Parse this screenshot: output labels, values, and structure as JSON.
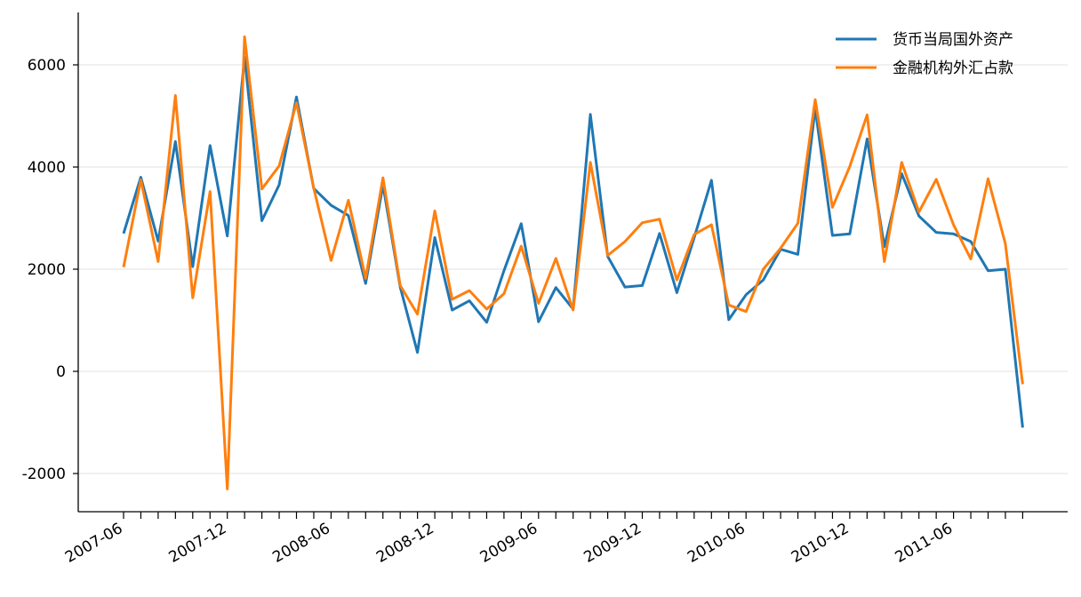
{
  "chart_data": {
    "type": "line",
    "title": "",
    "xlabel": "",
    "ylabel": "",
    "x": [
      "2007-06",
      "2007-07",
      "2007-08",
      "2007-09",
      "2007-10",
      "2007-11",
      "2007-12",
      "2008-01",
      "2008-02",
      "2008-03",
      "2008-04",
      "2008-05",
      "2008-06",
      "2008-07",
      "2008-08",
      "2008-09",
      "2008-10",
      "2008-11",
      "2008-12",
      "2009-01",
      "2009-02",
      "2009-03",
      "2009-04",
      "2009-05",
      "2009-06",
      "2009-07",
      "2009-08",
      "2009-09",
      "2009-10",
      "2009-11",
      "2009-12",
      "2010-01",
      "2010-02",
      "2010-03",
      "2010-04",
      "2010-05",
      "2010-06",
      "2010-07",
      "2010-08",
      "2010-09",
      "2010-10",
      "2010-11",
      "2010-12",
      "2011-01",
      "2011-02",
      "2011-03",
      "2011-04",
      "2011-05",
      "2011-06",
      "2011-07",
      "2011-08",
      "2011-09",
      "2011-10"
    ],
    "x_tick_labels": [
      "2007-06",
      "2007-12",
      "2008-06",
      "2008-12",
      "2009-06",
      "2009-12",
      "2010-06",
      "2010-12",
      "2011-06"
    ],
    "y_ticks": [
      -2000,
      0,
      2000,
      4000,
      6000
    ],
    "ylim": [
      -2700,
      7000
    ],
    "grid": "horizontal",
    "legend_position": "top-right",
    "series": [
      {
        "name": "货币当局国外资产",
        "color": "#1f77b4",
        "values": [
          2700,
          3800,
          2550,
          4500,
          2050,
          4420,
          2650,
          6150,
          2950,
          3650,
          5370,
          3580,
          3250,
          3050,
          1720,
          3650,
          1650,
          370,
          2620,
          1200,
          1380,
          960,
          1970,
          2890,
          970,
          1640,
          1220,
          5030,
          2250,
          1650,
          1680,
          2700,
          1540,
          2620,
          3740,
          1010,
          1500,
          1790,
          2390,
          2290,
          5150,
          2660,
          2690,
          4550,
          2440,
          3870,
          3040,
          2720,
          2690,
          2540,
          1970,
          2000,
          -1100
        ]
      },
      {
        "name": "金融机构外汇占款",
        "color": "#ff7f0e",
        "values": [
          2040,
          3750,
          2150,
          5400,
          1440,
          3520,
          -2300,
          6550,
          3570,
          4020,
          5260,
          3590,
          2170,
          3350,
          1820,
          3790,
          1680,
          1120,
          3140,
          1410,
          1580,
          1220,
          1520,
          2450,
          1330,
          2210,
          1200,
          4090,
          2270,
          2540,
          2910,
          2980,
          1790,
          2680,
          2870,
          1300,
          1170,
          2000,
          2410,
          2900,
          5320,
          3210,
          4010,
          5020,
          2150,
          4090,
          3120,
          3760,
          2870,
          2200,
          3770,
          2500,
          -250
        ]
      }
    ]
  }
}
